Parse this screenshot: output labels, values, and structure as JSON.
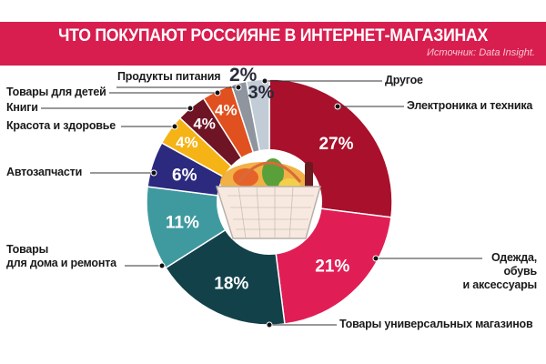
{
  "header": {
    "title": "ЧТО ПОКУПАЮТ РОССИЯНЕ В ИНТЕРНЕТ-МАГАЗИНАХ",
    "source": "Источник: Data Insight.",
    "color": "#d81d4f"
  },
  "chart_data": {
    "type": "pie",
    "title": "ЧТО ПОКУПАЮТ РОССИЯНЕ В ИНТЕРНЕТ-МАГАЗИНАХ",
    "subtitle": "Источник: Data Insight.",
    "unit": "%",
    "donut": true,
    "start_angle": "12 o'clock",
    "direction": "clockwise",
    "categories": [
      "Электроника и техника",
      "Одежда, обувь и аксессуары",
      "Товары универсальных магазинов",
      "Товары для дома и ремонта",
      "Автозапчасти",
      "Красота и здоровье",
      "Книги",
      "Товары для детей",
      "Продукты питания",
      "Другое"
    ],
    "values": [
      27,
      21,
      18,
      11,
      6,
      4,
      4,
      4,
      2,
      3
    ],
    "labels": [
      "27%",
      "21%",
      "18%",
      "11%",
      "6%",
      "4%",
      "4%",
      "4%",
      "2%",
      "3%"
    ],
    "colors": [
      "#a8102b",
      "#e01e55",
      "#12414a",
      "#3f9aa0",
      "#2b2a7e",
      "#f5b316",
      "#6e1425",
      "#e1501f",
      "#8e959e",
      "#c2ccd6"
    ],
    "legend_position": "leader lines around pie"
  },
  "labels": {
    "electronics": "Электроника и техника",
    "clothing_1": "Одежда,",
    "clothing_2": "обувь",
    "clothing_3": "и аксессуары",
    "universal": "Товары универсальных магазинов",
    "home_1": "Товары",
    "home_2": "для дома и ремонта",
    "auto": "Автозапчасти",
    "beauty": "Красота и здоровье",
    "books": "Книги",
    "kids": "Товары для детей",
    "food": "Продукты питания",
    "other": "Другое"
  },
  "outside_values": {
    "food": "2%",
    "other": "3%"
  },
  "center_image": "shopping-basket-with-groceries"
}
